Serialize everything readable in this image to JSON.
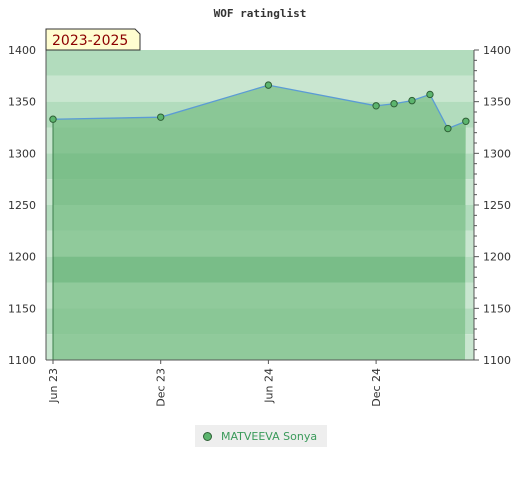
{
  "chart_data": {
    "type": "area",
    "title": "WOF ratinglist",
    "period_label": "2023-2025",
    "x_tick_labels": [
      "Jun 23",
      "Dec 23",
      "Jun 24",
      "Dec 24"
    ],
    "ylim": [
      1100,
      1400
    ],
    "y_ticks": [
      1100,
      1150,
      1200,
      1250,
      1300,
      1350,
      1400
    ],
    "y_axes": "left and right",
    "series": [
      {
        "name": "MATVEEVA Sonya",
        "x": [
          "2023-06",
          "2023-12",
          "2024-06",
          "2024-12",
          "2025-01",
          "2025-02",
          "2025-03",
          "2025-04",
          "2025-05"
        ],
        "values": [
          1333,
          1335,
          1366,
          1346,
          1348,
          1351,
          1357,
          1324,
          1331
        ]
      }
    ],
    "colors": {
      "line": "#5b9bd5",
      "fill": "#7cc08a",
      "marker": "#5cb56e",
      "marker_edge": "#2d5f35",
      "band_light": "#c9e6d0",
      "band_mid": "#b2dcbd",
      "badge_bg": "#fffdd0"
    },
    "legend": "bottom-center"
  }
}
